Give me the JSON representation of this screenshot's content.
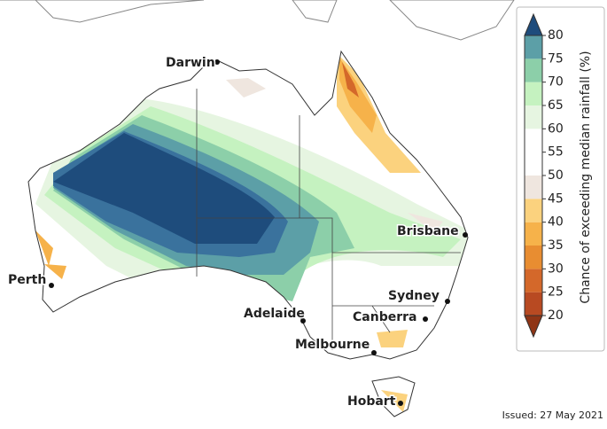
{
  "map": {
    "cities": [
      "Darwin",
      "Brisbane",
      "Perth",
      "Sydney",
      "Canberra",
      "Adelaide",
      "Melbourne",
      "Hobart"
    ],
    "legend": {
      "title": "Chance of exceeding median rainfall (%)",
      "ticks": [
        20,
        25,
        30,
        35,
        40,
        45,
        50,
        55,
        60,
        65,
        70,
        75,
        80
      ],
      "below_color": "#8f3516",
      "colors": [
        "#b84a22",
        "#d4682a",
        "#e88d31",
        "#f6b24a",
        "#fbd27e",
        "#efe6df",
        "#ffffff",
        "#ffffff",
        "#e6f5e1",
        "#c5f2c0",
        "#8ccfa9",
        "#5c9fa7",
        "#3a729d"
      ],
      "above_color": "#1e4c7c"
    },
    "issued": "Issued: 27 May 2021"
  }
}
